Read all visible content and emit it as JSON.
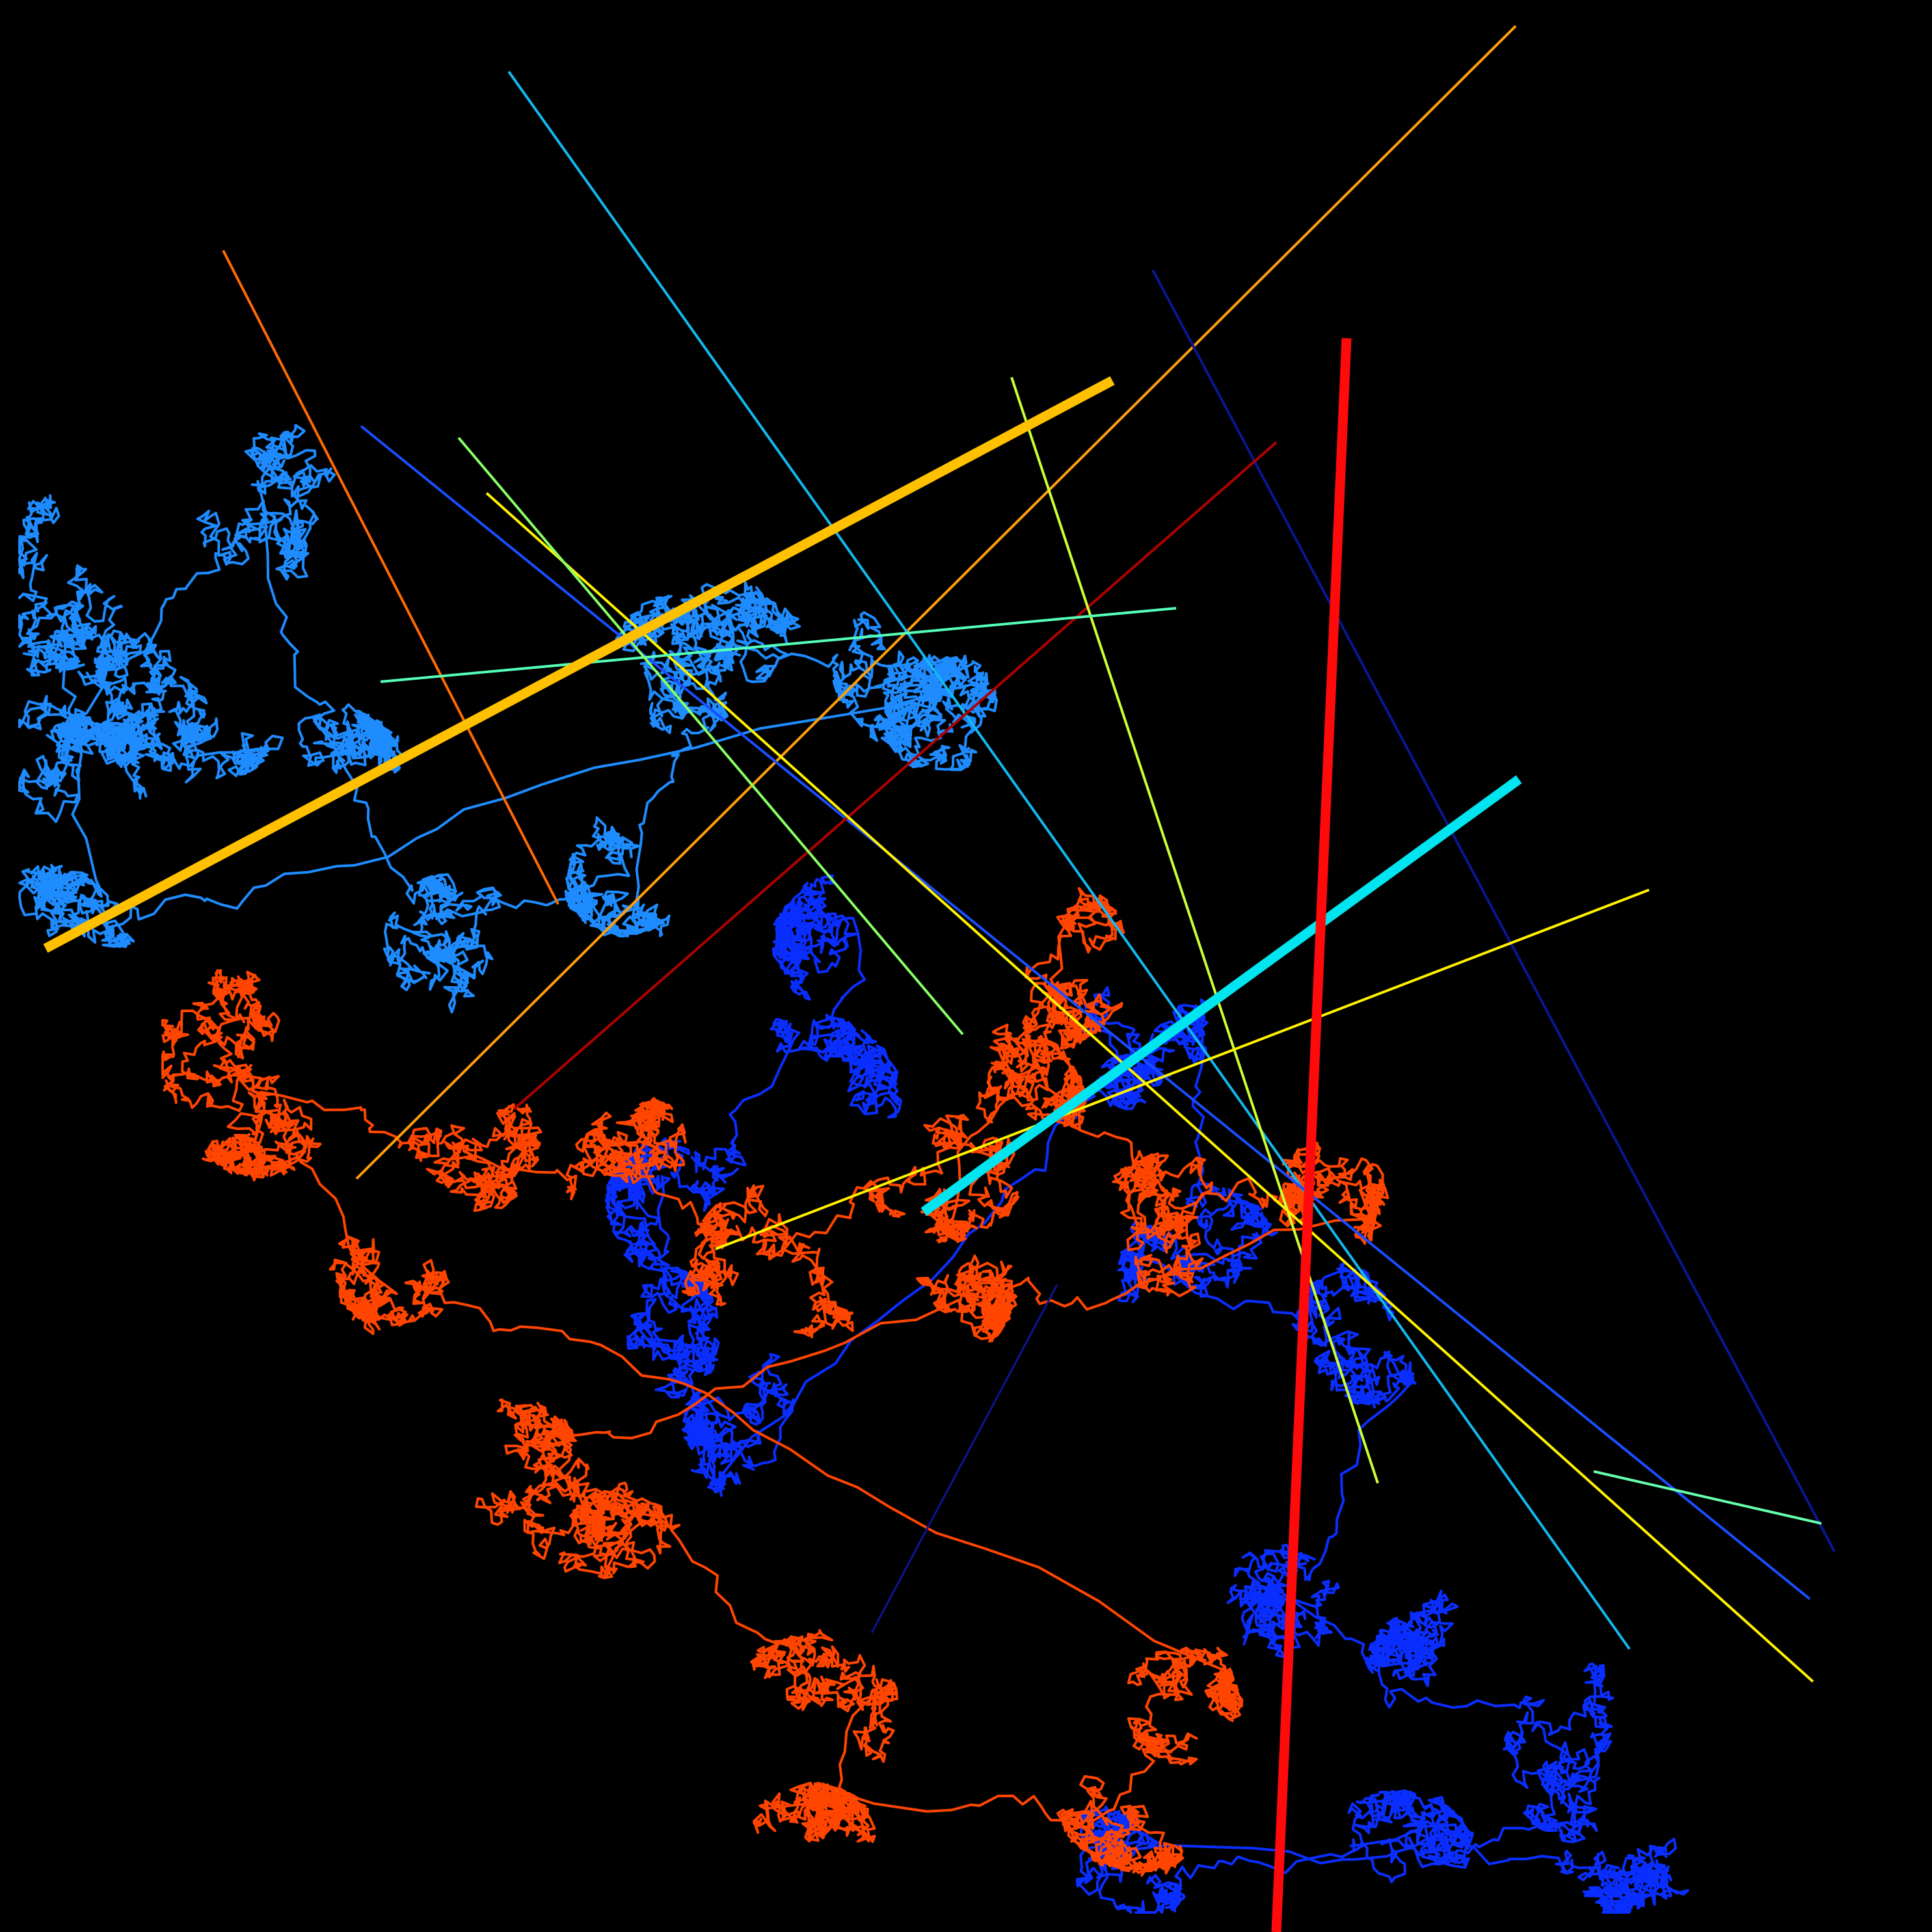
{
  "background_color": "#000000",
  "palette": {
    "walk_light_blue": "#1E8CFF",
    "walk_royal_blue": "#0A2EFF",
    "walk_orange_red": "#FF4500",
    "line_red": "#FF0A0A",
    "line_gold": "#FFC000",
    "line_cyan": "#00E5F0",
    "line_orange": "#FF9E0A",
    "line_dark_orange": "#FF6A00",
    "line_sky": "#12B8F0",
    "line_blue": "#1A4DFF",
    "line_navy": "#0A1690",
    "line_dark_red": "#B00000",
    "line_yellow": "#FFF200",
    "line_yellow_green": "#CCFF33",
    "line_aquamarine": "#55FFB8",
    "line_light_green": "#88FF66",
    "line_mint": "#66FFAA"
  }
}
